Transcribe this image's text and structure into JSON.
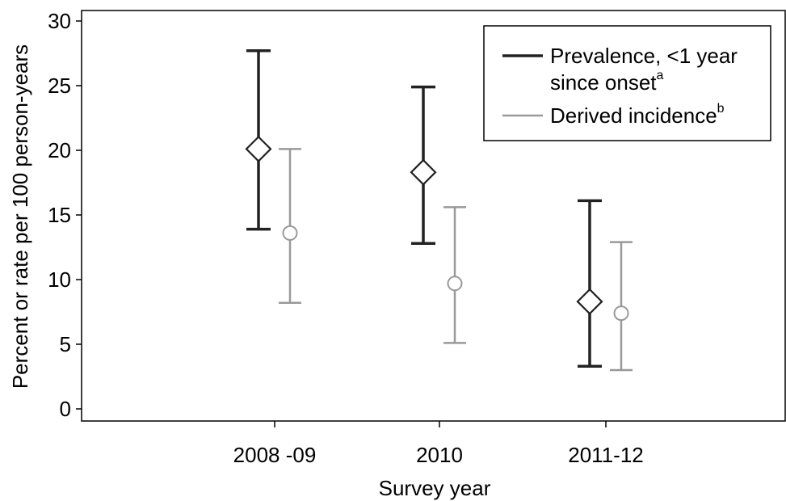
{
  "chart_data": {
    "type": "scatter",
    "title": "",
    "xlabel": "Survey year",
    "ylabel": "Percent or rate per 100 person-years",
    "categories": [
      "2008 -09",
      "2010",
      "2011-12"
    ],
    "ylim": [
      0,
      30
    ],
    "yticks": [
      0,
      5,
      10,
      15,
      20,
      25,
      30
    ],
    "grid": false,
    "legend_position": "top-right",
    "series": [
      {
        "name": "Prevalence, <1 year since onset",
        "name_line1": "Prevalence, <1 year",
        "name_line2": "since onset",
        "superscript": "a",
        "marker": "diamond",
        "color": "#222222",
        "values": [
          20.1,
          18.3,
          8.3
        ],
        "lower": [
          13.9,
          12.8,
          3.3
        ],
        "upper": [
          27.7,
          24.9,
          16.1
        ]
      },
      {
        "name": "Derived incidence",
        "superscript": "b",
        "marker": "circle",
        "color": "#999999",
        "values": [
          13.6,
          9.7,
          7.4
        ],
        "lower": [
          8.2,
          5.1,
          3.0
        ],
        "upper": [
          20.1,
          15.6,
          12.9
        ]
      }
    ]
  }
}
